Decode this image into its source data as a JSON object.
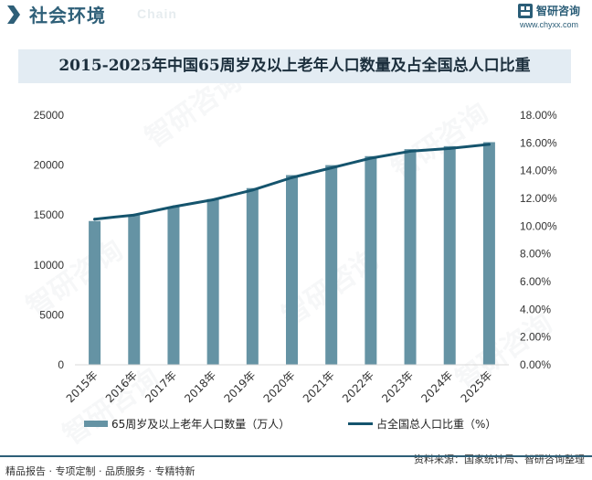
{
  "header": {
    "section_title": "社会环境",
    "section_subtitle": "Chain",
    "brand_name": "智研咨询",
    "brand_url": "www.chyxx.com"
  },
  "watermark_text": "智研咨询",
  "chart_data": {
    "type": "bar+line",
    "title": "2015-2025年中国65周岁及以上老年人口数量及占全国总人口比重",
    "categories": [
      "2015年",
      "2016年",
      "2017年",
      "2018年",
      "2019年",
      "2020年",
      "2021年",
      "2022年",
      "2023年",
      "2024年",
      "2025年"
    ],
    "series": [
      {
        "name": "65周岁及以上老年人口数量（万人）",
        "type": "bar",
        "axis": "left",
        "color": "#6593a4",
        "values": [
          14400,
          15000,
          15800,
          16600,
          17700,
          19000,
          20000,
          20900,
          21600,
          21900,
          22300
        ]
      },
      {
        "name": "占全国总人口比重（%）",
        "type": "line",
        "axis": "right",
        "color": "#15546d",
        "values": [
          10.5,
          10.8,
          11.4,
          11.9,
          12.6,
          13.5,
          14.2,
          14.9,
          15.4,
          15.6,
          15.9
        ]
      }
    ],
    "y_left": {
      "min": 0,
      "max": 25000,
      "ticks": [
        "0",
        "5000",
        "10000",
        "15000",
        "20000",
        "25000"
      ]
    },
    "y_right": {
      "min": 0,
      "max": 18,
      "ticks": [
        "0.00%",
        "2.00%",
        "4.00%",
        "6.00%",
        "8.00%",
        "10.00%",
        "12.00%",
        "14.00%",
        "16.00%",
        "18.00%"
      ]
    },
    "legend_position": "bottom"
  },
  "legend": {
    "bar_label": "65周岁及以上老年人口数量（万人）",
    "line_label": "占全国总人口比重（%）"
  },
  "footer": {
    "left": "精品报告 · 专项定制 · 品质服务 · 专精特新",
    "source": "资料来源：国家统计局、智研咨询整理"
  }
}
